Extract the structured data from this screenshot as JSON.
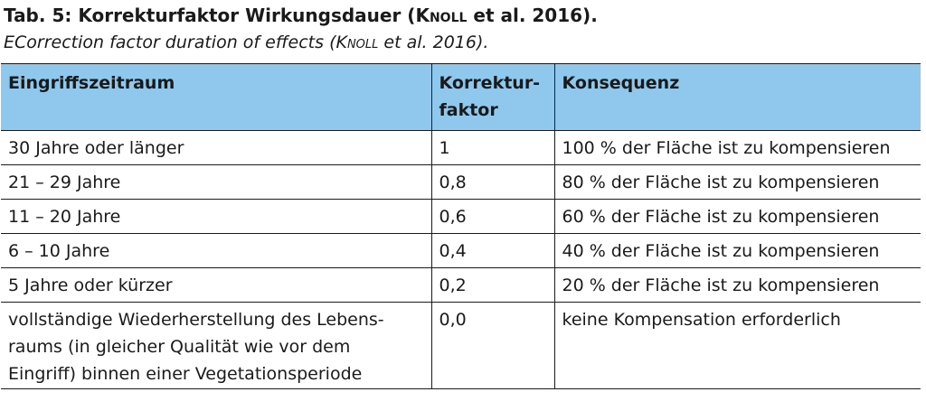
{
  "caption": {
    "title_prefix": "Tab. 5: Korrekturfaktor Wirkungsdauer (",
    "title_author": "Knoll",
    "title_suffix": " et al. 2016).",
    "subtitle_prefix": "ECorrection factor duration of effects (",
    "subtitle_author": "Knoll",
    "subtitle_suffix": " et al. 2016)."
  },
  "table": {
    "header": {
      "col1": "Eingriffszeitraum",
      "col2_line1": "Korrektur-",
      "col2_line2": "faktor",
      "col3": "Konsequenz"
    },
    "rows": [
      {
        "zeitraum": "30 Jahre oder länger",
        "faktor": "1",
        "konsequenz": "100 % der Fläche ist zu kompensieren"
      },
      {
        "zeitraum": "21 – 29 Jahre",
        "faktor": "0,8",
        "konsequenz": "80 % der Fläche ist zu kompensieren"
      },
      {
        "zeitraum": "11 – 20 Jahre",
        "faktor": "0,6",
        "konsequenz": "60 % der Fläche ist zu kompensieren"
      },
      {
        "zeitraum": "6 – 10 Jahre",
        "faktor": "0,4",
        "konsequenz": "40 % der Fläche ist zu kompensieren"
      },
      {
        "zeitraum": "5 Jahre oder kürzer",
        "faktor": "0,2",
        "konsequenz": "20 % der Fläche ist zu kompensieren"
      },
      {
        "zeitraum_line1": "vollständige Wiederherstellung des Lebens-",
        "zeitraum_line2": "raums (in gleicher Qualität wie vor dem",
        "zeitraum_line3": "Eingriff) binnen einer Vegetationsperiode",
        "faktor": "0,0",
        "konsequenz": "keine Kompensation erforderlich"
      }
    ]
  },
  "colors": {
    "header_background": "#8fc8ec",
    "border": "#1a1a1a",
    "text": "#1a1a1a"
  }
}
